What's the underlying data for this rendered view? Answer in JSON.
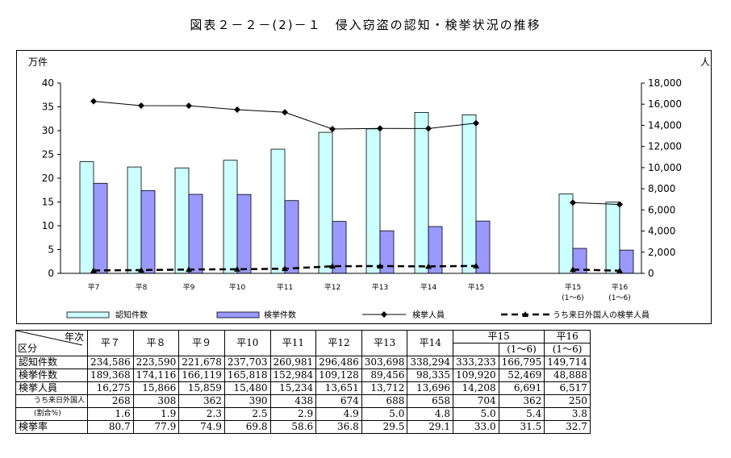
{
  "title": "図表２－２－(2)－１　侵入窃盗の認知・検挙状況の推移",
  "chart_data": {
    "type": "bar",
    "categories": [
      "平7",
      "平8",
      "平9",
      "平10",
      "平11",
      "平12",
      "平13",
      "平14",
      "平15",
      "平15",
      "平16"
    ],
    "category_sublabels": [
      "",
      "",
      "",
      "",
      "",
      "",
      "",
      "",
      "",
      "(1～6)",
      "(1～6)"
    ],
    "left_axis": {
      "label": "万件",
      "ylim": [
        0,
        40
      ],
      "ticks": [
        "0",
        "5",
        "10",
        "15",
        "20",
        "25",
        "30",
        "35",
        "40"
      ]
    },
    "right_axis": {
      "label": "人",
      "ylim": [
        0,
        18000
      ],
      "ticks": [
        "0",
        "2,000",
        "4,000",
        "6,000",
        "8,000",
        "10,000",
        "12,000",
        "14,000",
        "16,000",
        "18,000"
      ]
    },
    "series": [
      {
        "name": "認知件数",
        "type": "bar",
        "axis": "left",
        "color": "#ccffff",
        "values": [
          23.4586,
          22.359,
          22.1678,
          23.7703,
          26.0981,
          29.6486,
          30.3698,
          33.8294,
          33.3233,
          16.6795,
          14.9714
        ]
      },
      {
        "name": "検挙件数",
        "type": "bar",
        "axis": "left",
        "color": "#9999ff",
        "values": [
          18.9368,
          17.4116,
          16.6119,
          16.5818,
          15.2984,
          10.9128,
          8.9456,
          9.8335,
          10.992,
          5.2469,
          4.8888
        ]
      },
      {
        "name": "検挙人員",
        "type": "line",
        "axis": "right",
        "color": "#000000",
        "values": [
          16275,
          15866,
          15859,
          15480,
          15234,
          13651,
          13712,
          13696,
          14208,
          6691,
          6517
        ]
      },
      {
        "name": "うち来日外国人の検挙人員",
        "type": "line-dashed",
        "axis": "right",
        "color": "#000000",
        "values": [
          268,
          308,
          362,
          390,
          438,
          674,
          688,
          658,
          704,
          362,
          250
        ]
      }
    ],
    "legend_position": "bottom",
    "grid": false
  },
  "table": {
    "corner_top": "年次",
    "corner_bottom": "区分",
    "year_headers": [
      "平７",
      "平８",
      "平９",
      "平10",
      "平11",
      "平12",
      "平13",
      "平14",
      "平15",
      "平16"
    ],
    "half_label_15": "(1～6)",
    "half_label_16": "(1～6)",
    "rows": [
      {
        "label": "認知件数",
        "cells": [
          "234,586",
          "223,590",
          "221,678",
          "237,703",
          "260,981",
          "296,486",
          "303,698",
          "338,294",
          "333,233",
          "166,795",
          "149,714"
        ]
      },
      {
        "label": "検挙件数",
        "cells": [
          "189,368",
          "174,116",
          "166,119",
          "165,818",
          "152,984",
          "109,128",
          "89,456",
          "98,335",
          "109,920",
          "52,469",
          "48,888"
        ]
      },
      {
        "label": "検挙人員",
        "cells": [
          "16,275",
          "15,866",
          "15,859",
          "15,480",
          "15,234",
          "13,651",
          "13,712",
          "13,696",
          "14,208",
          "6,691",
          "6,517"
        ]
      },
      {
        "label": "うち来日外国人",
        "cells": [
          "268",
          "308",
          "362",
          "390",
          "438",
          "674",
          "688",
          "658",
          "704",
          "362",
          "250"
        ]
      },
      {
        "label": "(割合%)",
        "cells": [
          "1.6",
          "1.9",
          "2.3",
          "2.5",
          "2.9",
          "4.9",
          "5.0",
          "4.8",
          "5.0",
          "5.4",
          "3.8"
        ]
      },
      {
        "label": "検挙率",
        "cells": [
          "80.7",
          "77.9",
          "74.9",
          "69.8",
          "58.6",
          "36.8",
          "29.5",
          "29.1",
          "33.0",
          "31.5",
          "32.7"
        ]
      }
    ]
  }
}
